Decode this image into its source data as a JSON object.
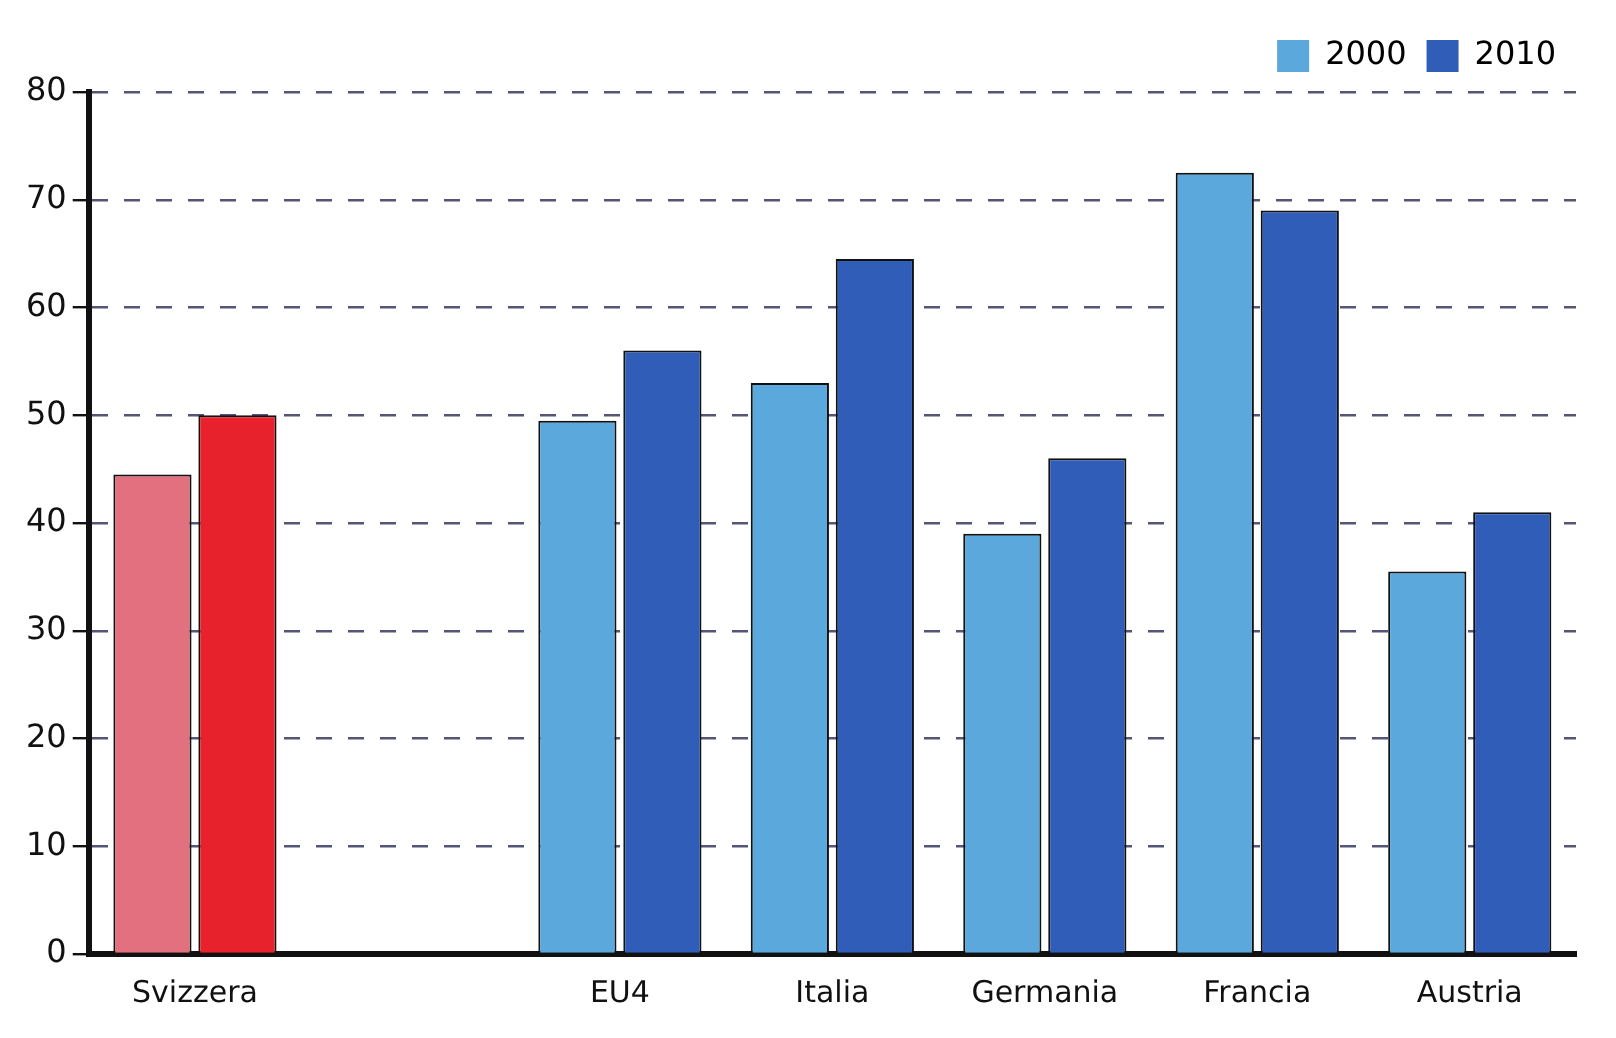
{
  "chart_data": {
    "type": "bar",
    "categories": [
      "Svizzera",
      null,
      "EU4",
      "Italia",
      "Germania",
      "Francia",
      "Austria"
    ],
    "series": [
      {
        "name": "2000",
        "color": "#5aa8dc",
        "colors": [
          "#e2707e",
          "#5aa8dc",
          "#5aa8dc",
          "#5aa8dc",
          "#5aa8dc",
          "#5aa8dc",
          "#5aa8dc"
        ],
        "values": [
          44.5,
          null,
          49.5,
          53,
          39,
          72.5,
          35.5
        ]
      },
      {
        "name": "2010",
        "color": "#2f5db8",
        "colors": [
          "#e8222c",
          "#2f5db8",
          "#2f5db8",
          "#2f5db8",
          "#2f5db8",
          "#2f5db8",
          "#2f5db8"
        ],
        "values": [
          50,
          null,
          56,
          64.5,
          46,
          69,
          41
        ]
      }
    ],
    "ylim": [
      0,
      80
    ],
    "yticks": [
      0,
      10,
      20,
      30,
      40,
      50,
      60,
      70,
      80
    ],
    "grid": "y",
    "line_style": "dashed",
    "legend": "top right"
  }
}
